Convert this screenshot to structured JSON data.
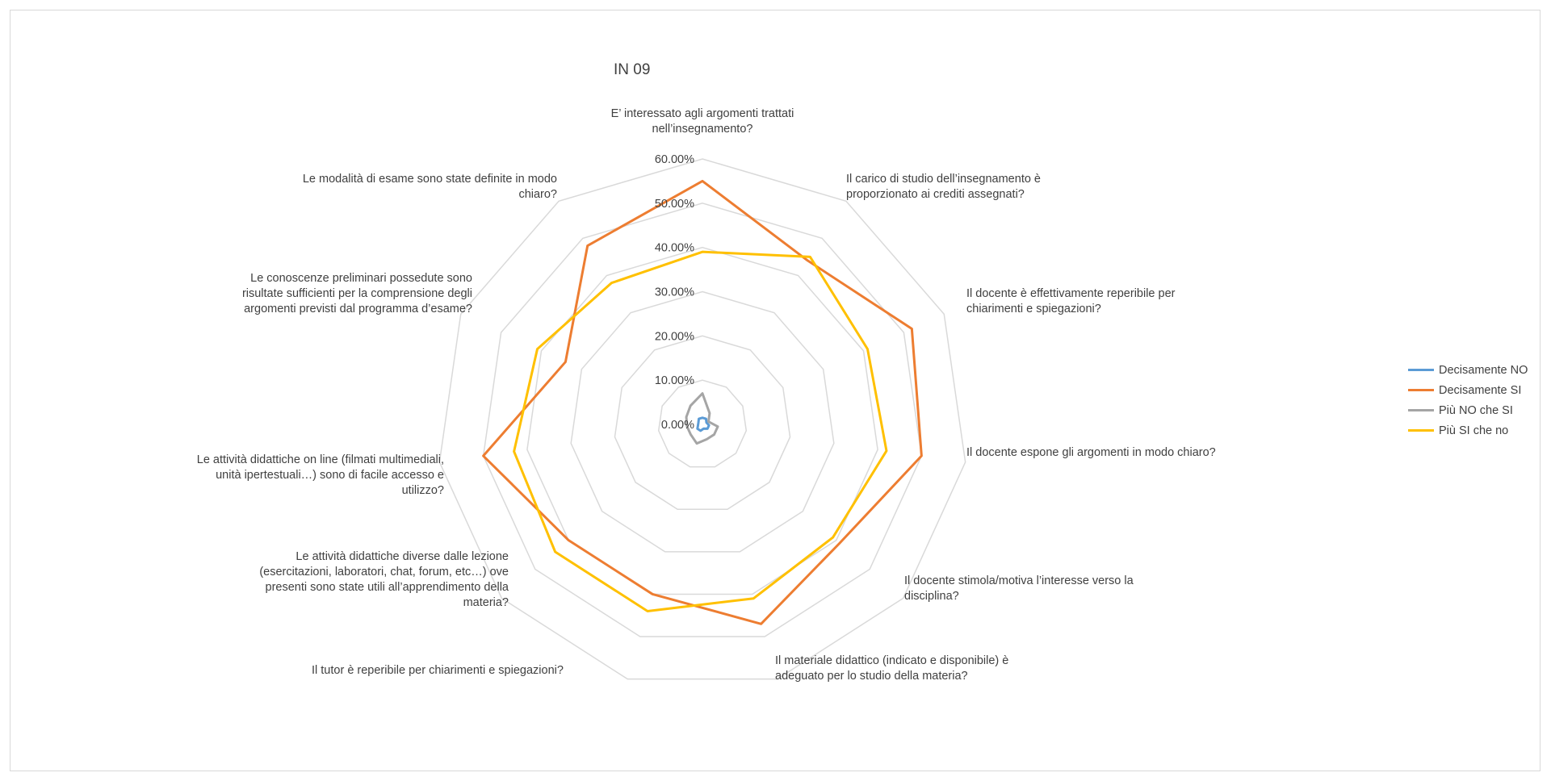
{
  "chart_data": {
    "type": "radar",
    "title": "IN 09",
    "rlim": [
      0,
      60
    ],
    "tick_values": [
      0,
      10,
      20,
      30,
      40,
      50,
      60
    ],
    "tick_labels": [
      "0.00%",
      "10.00%",
      "20.00%",
      "30.00%",
      "40.00%",
      "50.00%",
      "60.00%"
    ],
    "grid": true,
    "legend_position": "right",
    "categories": [
      "E’ interessato agli argomenti trattati nell’insegnamento?",
      "Il carico di studio dell’insegnamento è proporzionato ai crediti assegnati?",
      "Il docente è effettivamente reperibile per chiarimenti e spiegazioni?",
      "Il docente espone gli argomenti in modo chiaro?",
      "Il docente stimola/motiva l’interesse verso la disciplina?",
      "Il materiale didattico (indicato e disponibile) è adeguato per lo studio della materia?",
      "Il tutor è reperibile per chiarimenti e spiegazioni?",
      "Le attività didattiche diverse dalle lezione (esercitazioni, laboratori, chat, forum, etc…) ove presenti sono state utili all’apprendimento della materia?",
      "Le attività didattiche on line (filmati multimediali, unità ipertestuali…) sono di facile accesso e utilizzo?",
      "Le conoscenze preliminari possedute sono risultate sufficienti per la comprensione degli argomenti previsti dal programma d’esame?",
      "Le modalità di esame sono state definite in modo chiaro?"
    ],
    "category_lines": [
      [
        "E’ interessato agli argomenti trattati",
        "nell’insegnamento?"
      ],
      [
        "Il carico di studio dell’insegnamento è",
        "proporzionato ai crediti assegnati?"
      ],
      [
        "Il docente è effettivamente reperibile per",
        "chiarimenti e spiegazioni?"
      ],
      [
        "Il docente espone gli argomenti in modo chiaro?"
      ],
      [
        "Il docente stimola/motiva l’interesse verso la",
        "disciplina?"
      ],
      [
        "Il materiale didattico (indicato e disponibile) è",
        "adeguato per lo studio della materia?"
      ],
      [
        "Il tutor è reperibile per chiarimenti e spiegazioni?"
      ],
      [
        "Le attività didattiche diverse dalle lezione",
        "(esercitazioni, laboratori, chat, forum, etc…) ove",
        "presenti sono state utili all’apprendimento della",
        "materia?"
      ],
      [
        "Le attività didattiche on line (filmati multimediali,",
        "unità ipertestuali…) sono di facile accesso e",
        "utilizzo?"
      ],
      [
        "Le conoscenze preliminari possedute sono",
        "risultate sufficienti per la comprensione degli",
        "argomenti previsti dal programma d’esame?"
      ],
      [
        "Le modalità di esame sono state definite in modo",
        "chiaro?"
      ]
    ],
    "series": [
      {
        "name": "Decisamente NO",
        "color": "#5b9bd5",
        "values": [
          1.5,
          1.5,
          1.0,
          1.5,
          1.5,
          1.0,
          1.5,
          1.5,
          1.0,
          1.0,
          1.5
        ]
      },
      {
        "name": "Decisamente SI",
        "color": "#ed7d31",
        "values": [
          55,
          44,
          52,
          50,
          41,
          47,
          40,
          40,
          50,
          34,
          48
        ]
      },
      {
        "name": "Più NO che SI",
        "color": "#a5a5a5",
        "values": [
          7,
          3,
          1.5,
          3.5,
          3.5,
          3.5,
          4.5,
          3.5,
          3.5,
          4,
          5
        ]
      },
      {
        "name": "Più SI che no",
        "color": "#ffc000",
        "values": [
          39,
          45,
          41,
          42,
          39,
          41,
          44,
          44,
          43,
          41,
          38
        ]
      }
    ]
  }
}
